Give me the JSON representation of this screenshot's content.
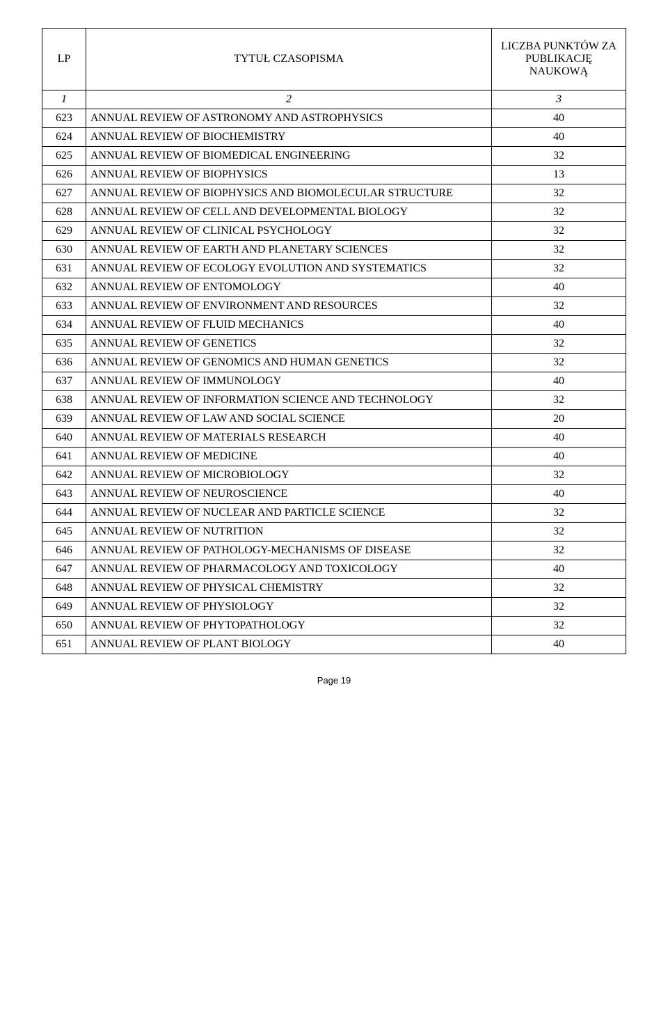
{
  "header": {
    "lp": "LP",
    "title": "TYTUŁ CZASOPISMA",
    "points": "LICZBA PUNKTÓW ZA PUBLIKACJĘ NAUKOWĄ"
  },
  "subheader": {
    "c1": "1",
    "c2": "2",
    "c3": "3"
  },
  "rows": [
    {
      "lp": "623",
      "title": "ANNUAL REVIEW OF ASTRONOMY AND ASTROPHYSICS",
      "points": "40"
    },
    {
      "lp": "624",
      "title": "ANNUAL REVIEW OF BIOCHEMISTRY",
      "points": "40"
    },
    {
      "lp": "625",
      "title": "ANNUAL REVIEW OF BIOMEDICAL ENGINEERING",
      "points": "32"
    },
    {
      "lp": "626",
      "title": "ANNUAL REVIEW OF BIOPHYSICS",
      "points": "13"
    },
    {
      "lp": "627",
      "title": "ANNUAL REVIEW OF BIOPHYSICS AND BIOMOLECULAR STRUCTURE",
      "points": "32"
    },
    {
      "lp": "628",
      "title": "ANNUAL REVIEW OF CELL AND DEVELOPMENTAL BIOLOGY",
      "points": "32"
    },
    {
      "lp": "629",
      "title": "ANNUAL REVIEW OF CLINICAL PSYCHOLOGY",
      "points": "32"
    },
    {
      "lp": "630",
      "title": "ANNUAL REVIEW OF EARTH AND PLANETARY SCIENCES",
      "points": "32"
    },
    {
      "lp": "631",
      "title": "ANNUAL REVIEW OF ECOLOGY EVOLUTION AND SYSTEMATICS",
      "points": "32"
    },
    {
      "lp": "632",
      "title": "ANNUAL REVIEW OF ENTOMOLOGY",
      "points": "40"
    },
    {
      "lp": "633",
      "title": "ANNUAL REVIEW OF ENVIRONMENT AND RESOURCES",
      "points": "32"
    },
    {
      "lp": "634",
      "title": "ANNUAL REVIEW OF FLUID MECHANICS",
      "points": "40"
    },
    {
      "lp": "635",
      "title": "ANNUAL REVIEW OF GENETICS",
      "points": "32"
    },
    {
      "lp": "636",
      "title": "ANNUAL REVIEW OF GENOMICS AND HUMAN GENETICS",
      "points": "32"
    },
    {
      "lp": "637",
      "title": "ANNUAL REVIEW OF IMMUNOLOGY",
      "points": "40"
    },
    {
      "lp": "638",
      "title": "ANNUAL REVIEW OF INFORMATION SCIENCE AND TECHNOLOGY",
      "points": "32"
    },
    {
      "lp": "639",
      "title": "ANNUAL REVIEW OF LAW AND SOCIAL SCIENCE",
      "points": "20"
    },
    {
      "lp": "640",
      "title": "ANNUAL REVIEW OF MATERIALS RESEARCH",
      "points": "40"
    },
    {
      "lp": "641",
      "title": "ANNUAL REVIEW OF MEDICINE",
      "points": "40"
    },
    {
      "lp": "642",
      "title": "ANNUAL REVIEW OF MICROBIOLOGY",
      "points": "32"
    },
    {
      "lp": "643",
      "title": "ANNUAL REVIEW OF NEUROSCIENCE",
      "points": "40"
    },
    {
      "lp": "644",
      "title": "ANNUAL REVIEW OF NUCLEAR AND PARTICLE SCIENCE",
      "points": "32"
    },
    {
      "lp": "645",
      "title": "ANNUAL REVIEW OF NUTRITION",
      "points": "32"
    },
    {
      "lp": "646",
      "title": "ANNUAL REVIEW OF PATHOLOGY-MECHANISMS OF DISEASE",
      "points": "32"
    },
    {
      "lp": "647",
      "title": "ANNUAL REVIEW OF PHARMACOLOGY AND TOXICOLOGY",
      "points": "40"
    },
    {
      "lp": "648",
      "title": "ANNUAL REVIEW OF PHYSICAL CHEMISTRY",
      "points": "32"
    },
    {
      "lp": "649",
      "title": "ANNUAL REVIEW OF PHYSIOLOGY",
      "points": "32"
    },
    {
      "lp": "650",
      "title": "ANNUAL REVIEW OF PHYTOPATHOLOGY",
      "points": "32"
    },
    {
      "lp": "651",
      "title": "ANNUAL REVIEW OF PLANT BIOLOGY",
      "points": "40"
    }
  ],
  "footer": "Page 19"
}
